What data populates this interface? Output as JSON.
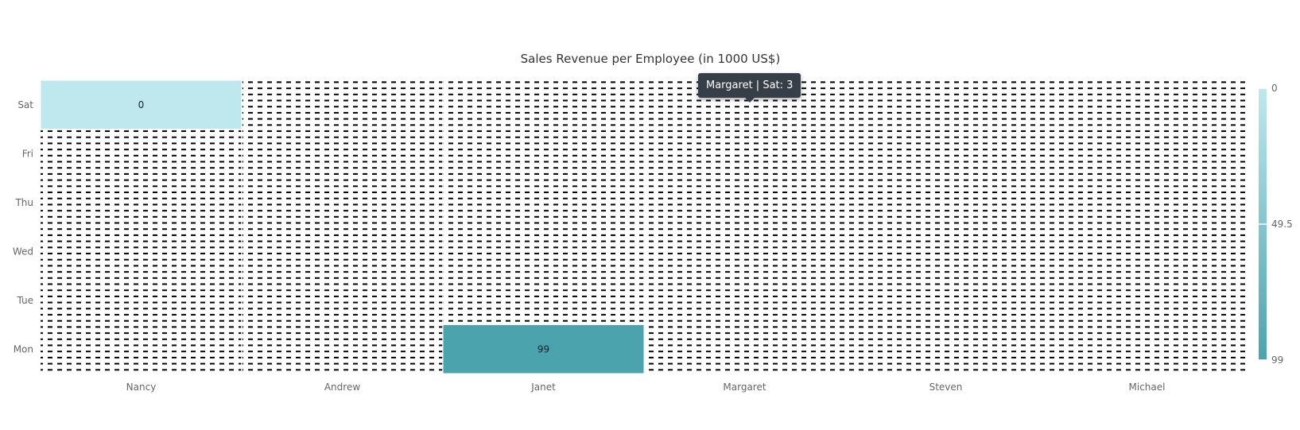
{
  "chart_data": {
    "type": "heatmap",
    "title": "Sales Revenue per Employee (in 1000 US$)",
    "x_categories": [
      "Nancy",
      "Andrew",
      "Janet",
      "Margaret",
      "Steven",
      "Michael"
    ],
    "y_categories": [
      "Sat",
      "Fri",
      "Thu",
      "Wed",
      "Tue",
      "Mon"
    ],
    "cells": [
      {
        "x": "Nancy",
        "y": "Sat",
        "value": 0,
        "label": "0"
      },
      {
        "x": "Janet",
        "y": "Mon",
        "value": 99,
        "label": "99"
      }
    ],
    "color_scale": {
      "min": 0,
      "max": 99,
      "min_color": "#bfe8ee",
      "max_color": "#4ba3ae"
    },
    "legend": {
      "position": "right",
      "ticks": [
        "0",
        "49.5",
        "99"
      ]
    },
    "tooltip": {
      "text": "Margaret | Sat: 3"
    }
  }
}
